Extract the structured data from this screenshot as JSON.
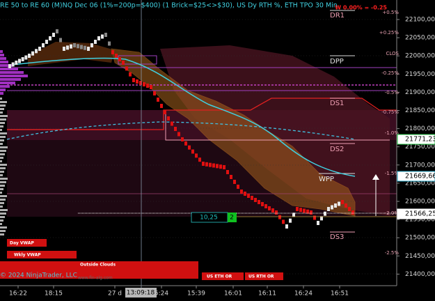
{
  "header": {
    "title": "RE 50 to RE 60 (M)NQ Dec 06 (1%=200p=$400) (1 Brick=$25<>$30), US Dy RTH %, ETH TPO 30 Min",
    "weekly": "W 0.00% = -0.25"
  },
  "price_axis": [
    "22100,00",
    "22050,00",
    "22000,00",
    "21950,00",
    "21900,00",
    "21850,00",
    "21800,00",
    "21750,00",
    "21700,00",
    "21650,00",
    "21600,00",
    "21550,00",
    "21500,00",
    "21450,00",
    "21400,00"
  ],
  "price_markers": [
    "21771,23",
    "21669,66",
    "21566,25"
  ],
  "percent_labels": [
    "+0.5%",
    "+0.25%",
    "CLOS",
    "-0.25%",
    "-0.5%",
    "-0.75%",
    "-1.0%",
    "-1.5%",
    "-2.0%",
    "-2.5%"
  ],
  "levels": [
    "DR1",
    "DPP",
    "DS1",
    "DS2",
    "WPP",
    "DS3"
  ],
  "time_axis": [
    "16:22",
    "18:15",
    "27 d",
    "5:24",
    "15:39",
    "16:01",
    "16:11",
    "16:24",
    "16:51"
  ],
  "cursor": {
    "time": "13:09:18"
  },
  "measure": {
    "ticks": "10,25",
    "count": "2"
  },
  "buttons": [
    "Day VWAP",
    "Wkly VWAP",
    "Outside Clouds",
    "US ETH OR",
    "US RTH OR"
  ],
  "copyright": "© 2024 NinjaTrader, LLC",
  "watermark": "www.fin-alg.com"
}
